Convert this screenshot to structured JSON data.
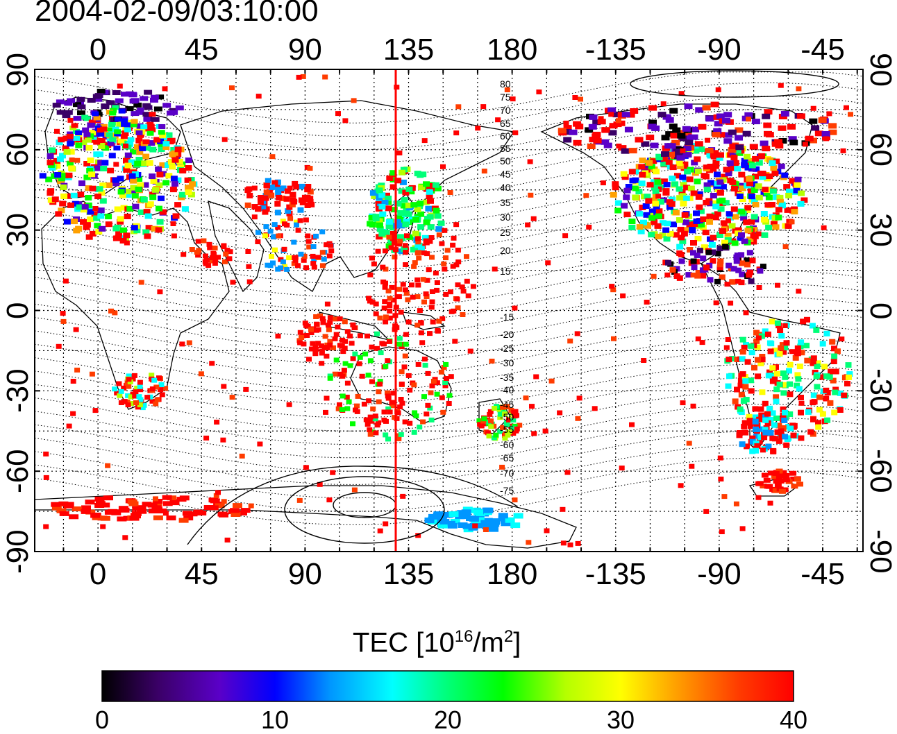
{
  "timestamp": "2004-02-09/03:10:00",
  "map": {
    "lon_ticks_top": [
      "0",
      "45",
      "90",
      "135",
      "180",
      "-135",
      "-90",
      "-45"
    ],
    "lon_ticks_bottom": [
      "0",
      "45",
      "90",
      "135",
      "180",
      "-135",
      "-90",
      "-45"
    ],
    "lat_ticks_left": [
      "90",
      "60",
      "30",
      "0",
      "-30",
      "-60",
      "-90"
    ],
    "lat_ticks_right": [
      "90",
      "60",
      "30",
      "0",
      "-30",
      "-60",
      "-90"
    ],
    "contour_labels": [
      "80",
      "75",
      "70",
      "65",
      "60",
      "55",
      "50",
      "45",
      "40",
      "35",
      "30",
      "25",
      "20",
      "15",
      "-15",
      "-20",
      "-25",
      "-30",
      "-35",
      "-40",
      "-45",
      "-50",
      "-55",
      "-60",
      "-65",
      "-70",
      "-75"
    ],
    "terminator_longitude": 132,
    "colors": {
      "terminator": "#ff0000",
      "frame": "#000000"
    }
  },
  "colorbar": {
    "title": "TEC  [10",
    "title_sup": "16",
    "title_unit": "/m",
    "title_sup2": "2",
    "title_end": "]",
    "ticks": [
      "0",
      "10",
      "20",
      "30",
      "40"
    ],
    "range": [
      0,
      40
    ],
    "colormap": [
      "#000000",
      "#3a0066",
      "#5a00c8",
      "#0000ff",
      "#0096ff",
      "#00ffff",
      "#00ff78",
      "#00ff00",
      "#b4ff00",
      "#ffff00",
      "#ffa000",
      "#ff3c00",
      "#ff0000"
    ]
  }
}
